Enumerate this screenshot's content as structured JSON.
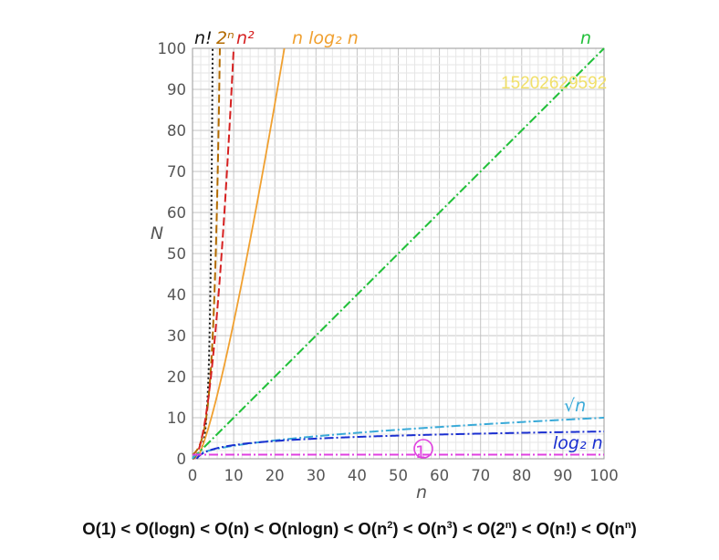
{
  "chart_data": {
    "type": "line",
    "xlabel": "n",
    "ylabel": "N",
    "xlim": [
      0,
      100
    ],
    "ylim": [
      0,
      100
    ],
    "x_ticks": [
      "0",
      "10",
      "20",
      "30",
      "40",
      "50",
      "60",
      "70",
      "80",
      "90",
      "100"
    ],
    "y_ticks": [
      "0",
      "10",
      "20",
      "30",
      "40",
      "50",
      "60",
      "70",
      "80",
      "90",
      "100"
    ],
    "grid": true,
    "series": [
      {
        "name": "n!",
        "function": "factorial",
        "color": "#111111",
        "style": "dotted",
        "x": [
          0,
          1,
          2,
          3,
          4,
          4.5,
          5
        ],
        "y": [
          1,
          1,
          2,
          6,
          24,
          52.3,
          120
        ]
      },
      {
        "name": "2ⁿ",
        "function": "exp2",
        "color": "#b36b00",
        "style": "dashed",
        "x": [
          0,
          2,
          4,
          5,
          6,
          6.64,
          7
        ],
        "y": [
          1,
          4,
          16,
          32,
          64,
          100,
          128
        ]
      },
      {
        "name": "n²",
        "function": "square",
        "color": "#d62020",
        "style": "dashed",
        "x": [
          0,
          2,
          4,
          6,
          8,
          10
        ],
        "y": [
          0,
          4,
          16,
          36,
          64,
          100
        ]
      },
      {
        "name": "n log₂ n",
        "function": "nlogn",
        "color": "#f0a030",
        "style": "solid",
        "x": [
          1,
          5,
          10,
          15,
          20,
          22.5
        ],
        "y": [
          0,
          11.6,
          33.2,
          58.6,
          86.4,
          101.1
        ]
      },
      {
        "name": "n",
        "function": "linear",
        "color": "#22c03a",
        "style": "dashdot",
        "x": [
          0,
          100
        ],
        "y": [
          0,
          100
        ]
      },
      {
        "name": "√n",
        "function": "sqrt",
        "color": "#3aaad8",
        "style": "dashdot",
        "x": [
          0,
          1,
          4,
          9,
          25,
          49,
          81,
          100
        ],
        "y": [
          0,
          1,
          2,
          3,
          5,
          7,
          9,
          10
        ]
      },
      {
        "name": "log₂ n",
        "function": "log2",
        "color": "#1a2fd0",
        "style": "dashdot",
        "x": [
          1,
          2,
          4,
          8,
          16,
          32,
          64,
          100
        ],
        "y": [
          0,
          1,
          2,
          3,
          4,
          5,
          6,
          6.64
        ]
      },
      {
        "name": "1",
        "function": "constant",
        "color": "#e040e0",
        "style": "dashdot",
        "x": [
          0,
          100
        ],
        "y": [
          1,
          1
        ]
      }
    ],
    "watermark": "15202629592",
    "caption_parts": [
      {
        "t": "O(1) < O(logn) < O(n) < O(nlogn) < O(n"
      },
      {
        "sup": "2"
      },
      {
        "t": ") < O(n"
      },
      {
        "sup": "3"
      },
      {
        "t": ") < O(2"
      },
      {
        "sup": "n"
      },
      {
        "t": ") < O(n!) < O(n"
      },
      {
        "sup": "n"
      },
      {
        "t": ")"
      }
    ]
  }
}
